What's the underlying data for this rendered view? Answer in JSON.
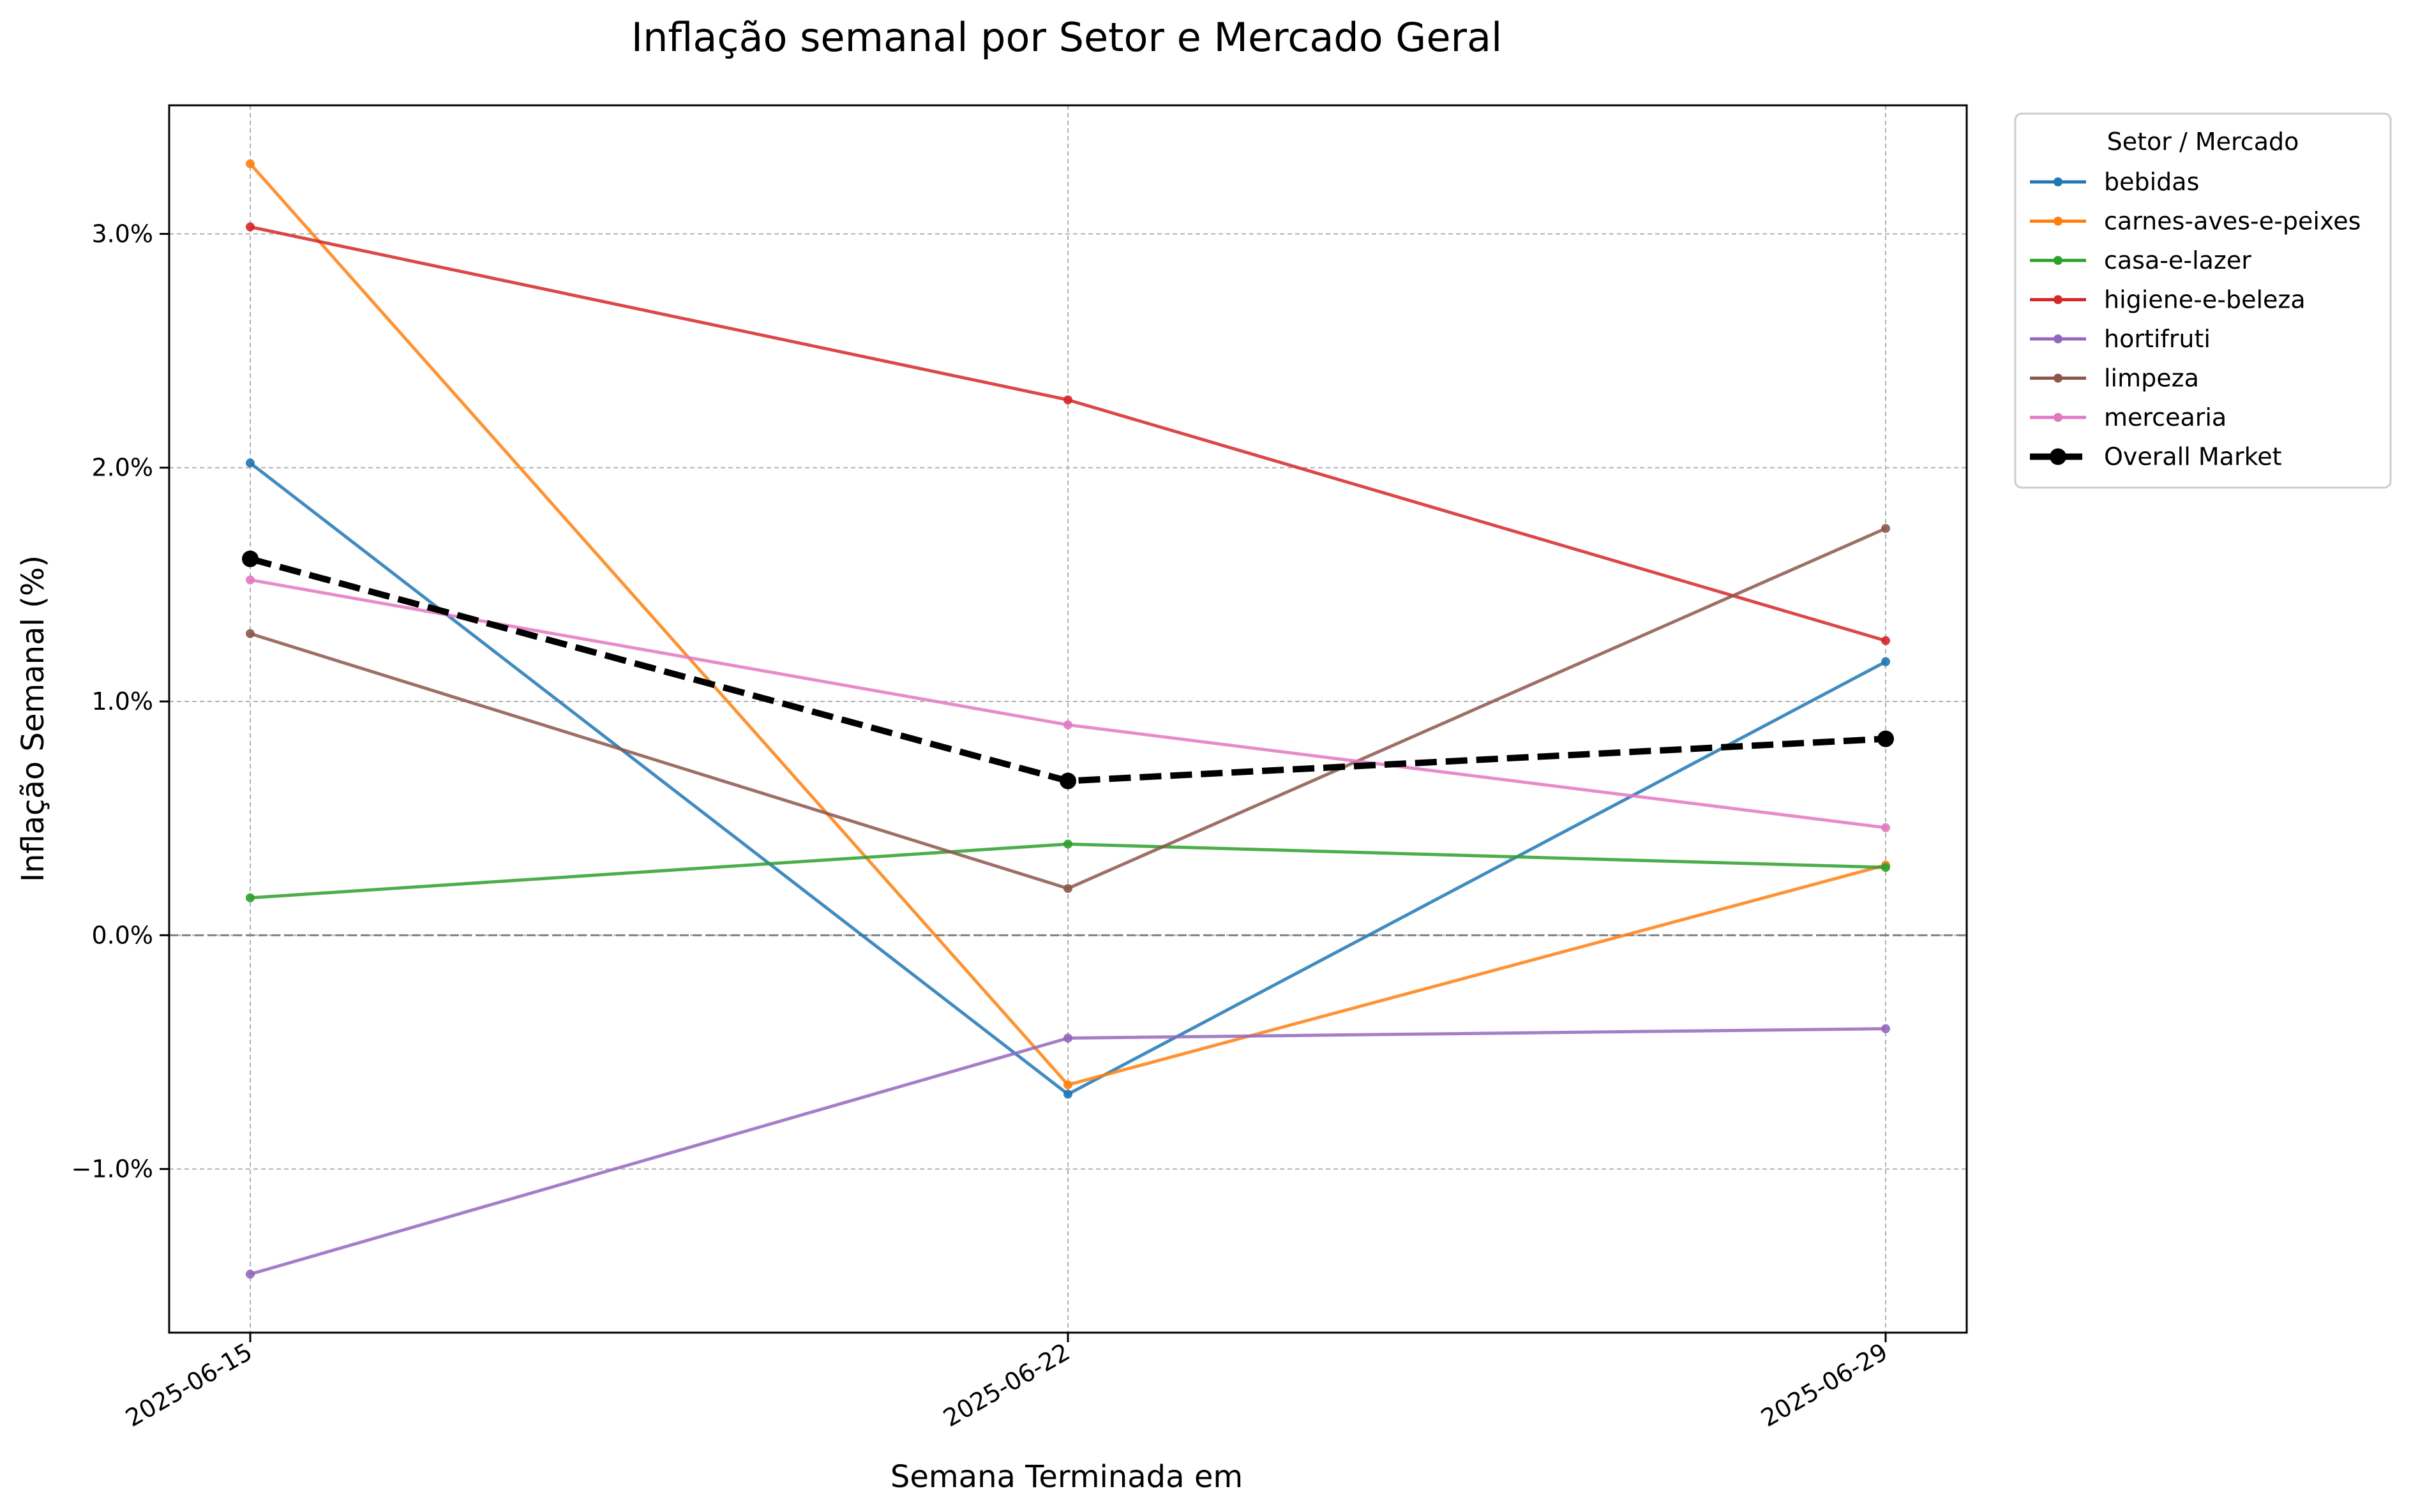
{
  "chart_data": {
    "type": "line",
    "title": "Inflação semanal por Setor e Mercado Geral",
    "xlabel": "Semana Terminada em",
    "ylabel": "Inflação Semanal (%)",
    "x": [
      "2025-06-15",
      "2025-06-22",
      "2025-06-29"
    ],
    "ylim": [
      -1.7,
      3.55
    ],
    "yticks": [
      -1.0,
      0.0,
      1.0,
      2.0,
      3.0
    ],
    "ytick_labels": [
      "−1.0%",
      "0.0%",
      "1.0%",
      "2.0%",
      "3.0%"
    ],
    "grid": true,
    "zero_line": true,
    "legend": {
      "title": "Setor / Mercado",
      "placement": "outside-top-right"
    },
    "series": [
      {
        "name": "bebidas",
        "color": "#1f77b4",
        "values": [
          2.02,
          -0.68,
          1.17
        ]
      },
      {
        "name": "carnes-aves-e-peixes",
        "color": "#ff7f0e",
        "values": [
          3.3,
          -0.64,
          0.3
        ]
      },
      {
        "name": "casa-e-lazer",
        "color": "#2ca02c",
        "values": [
          0.16,
          0.39,
          0.29
        ]
      },
      {
        "name": "higiene-e-beleza",
        "color": "#d62728",
        "values": [
          3.03,
          2.29,
          1.26
        ]
      },
      {
        "name": "hortifruti",
        "color": "#9467bd",
        "values": [
          -1.45,
          -0.44,
          -0.4
        ]
      },
      {
        "name": "limpeza",
        "color": "#8c564b",
        "values": [
          1.29,
          0.2,
          1.74
        ]
      },
      {
        "name": "mercearia",
        "color": "#e377c2",
        "values": [
          1.52,
          0.9,
          0.46
        ]
      },
      {
        "name": "Overall Market",
        "color": "#000000",
        "values": [
          1.61,
          0.66,
          0.84
        ],
        "dashed": true
      }
    ]
  }
}
